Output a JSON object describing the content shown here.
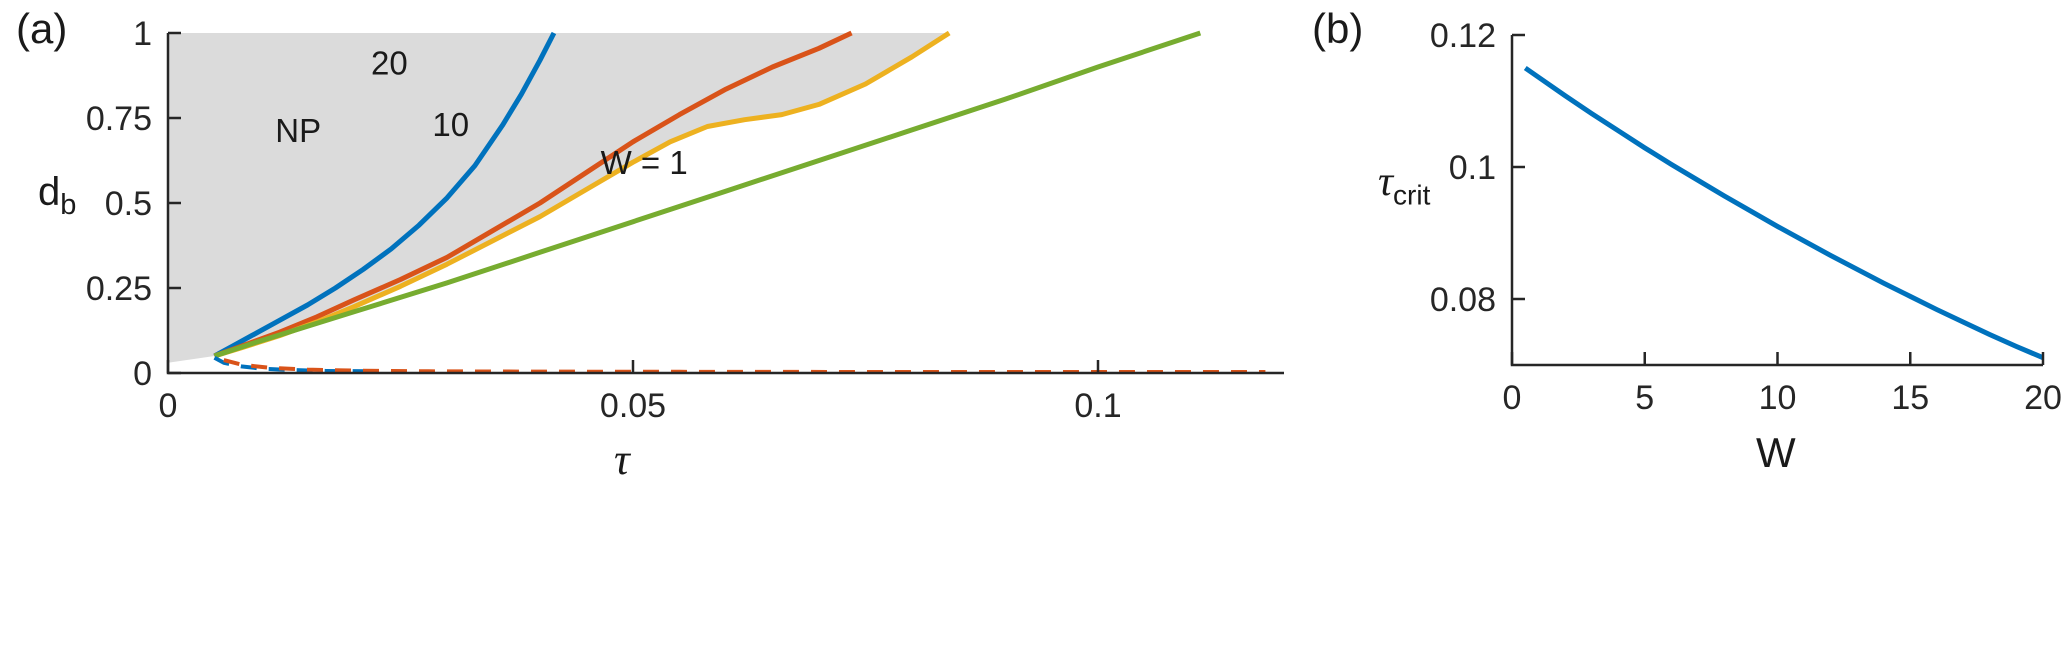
{
  "colors": {
    "axis": "#262626",
    "text": "#1a1a1a",
    "background": "#ffffff",
    "blue": "#0072BD",
    "orange": "#D95319",
    "yellow": "#EDB120",
    "green": "#77AC30",
    "shade": "#DBDBDB"
  },
  "chart_data": [
    {
      "id": "a",
      "type": "line",
      "panel_label": "(a)",
      "xlabel": {
        "text": "τ",
        "sub": ""
      },
      "ylabel": {
        "text": "d",
        "sub": "b"
      },
      "xlim": [
        0,
        0.12
      ],
      "ylim": [
        0,
        1
      ],
      "xticks": [
        0,
        0.05,
        0.1
      ],
      "xtick_labels": [
        "0",
        "0.05",
        "0.1"
      ],
      "yticks": [
        0,
        0.25,
        0.5,
        0.75,
        1
      ],
      "ytick_labels": [
        "0",
        "0.25",
        "0.5",
        "0.75",
        "1"
      ],
      "grid": false,
      "legend": "none (curves labeled by in-plot annotations)",
      "shaded_region": {
        "color": "#DBDBDB",
        "note": "gray region bounded on the right by the W=10 boundary curve",
        "x": [
          0,
          0,
          0.005,
          0.008,
          0.012,
          0.016,
          0.02,
          0.025,
          0.03,
          0.035,
          0.04,
          0.045,
          0.05,
          0.054,
          0.058,
          0.062,
          0.066,
          0.07,
          0.075,
          0.08,
          0.084
        ],
        "y": [
          1,
          0.03,
          0.05,
          0.075,
          0.11,
          0.15,
          0.195,
          0.255,
          0.32,
          0.39,
          0.46,
          0.54,
          0.62,
          0.68,
          0.725,
          0.745,
          0.76,
          0.79,
          0.85,
          0.93,
          1.0
        ]
      },
      "series": [
        {
          "name": "NP",
          "color": "#0072BD",
          "style": "solid",
          "x": [
            0.005,
            0.007,
            0.009,
            0.012,
            0.015,
            0.018,
            0.021,
            0.024,
            0.027,
            0.03,
            0.033,
            0.036,
            0.038,
            0.04,
            0.0415
          ],
          "y": [
            0.05,
            0.08,
            0.11,
            0.155,
            0.2,
            0.25,
            0.305,
            0.365,
            0.435,
            0.515,
            0.61,
            0.73,
            0.82,
            0.92,
            1.0
          ]
        },
        {
          "name": "W=20",
          "color": "#D95319",
          "style": "solid",
          "x": [
            0.005,
            0.008,
            0.012,
            0.016,
            0.02,
            0.025,
            0.03,
            0.035,
            0.04,
            0.045,
            0.05,
            0.055,
            0.06,
            0.065,
            0.07,
            0.0735
          ],
          "y": [
            0.05,
            0.08,
            0.12,
            0.165,
            0.215,
            0.275,
            0.34,
            0.42,
            0.5,
            0.59,
            0.68,
            0.76,
            0.835,
            0.9,
            0.955,
            1.0
          ]
        },
        {
          "name": "W=10",
          "color": "#EDB120",
          "style": "solid",
          "x": [
            0.005,
            0.008,
            0.012,
            0.016,
            0.02,
            0.025,
            0.03,
            0.035,
            0.04,
            0.045,
            0.05,
            0.054,
            0.058,
            0.062,
            0.066,
            0.07,
            0.075,
            0.08,
            0.084
          ],
          "y": [
            0.05,
            0.075,
            0.11,
            0.15,
            0.195,
            0.255,
            0.32,
            0.39,
            0.46,
            0.54,
            0.62,
            0.68,
            0.725,
            0.745,
            0.76,
            0.79,
            0.85,
            0.93,
            1.0
          ]
        },
        {
          "name": "W=1",
          "color": "#77AC30",
          "style": "solid",
          "x": [
            0.005,
            0.01,
            0.02,
            0.03,
            0.04,
            0.05,
            0.06,
            0.07,
            0.08,
            0.09,
            0.1,
            0.111
          ],
          "y": [
            0.05,
            0.095,
            0.18,
            0.265,
            0.355,
            0.445,
            0.535,
            0.625,
            0.715,
            0.805,
            0.9,
            1.0
          ]
        },
        {
          "name": "lower-branch-NP",
          "color": "#0072BD",
          "style": "dashed",
          "x": [
            0.005,
            0.006,
            0.008,
            0.01,
            0.013,
            0.017,
            0.022
          ],
          "y": [
            0.045,
            0.03,
            0.019,
            0.013,
            0.009,
            0.006,
            0.005
          ]
        },
        {
          "name": "lower-branch",
          "color": "#D95319",
          "style": "dashed",
          "x": [
            0.006,
            0.008,
            0.011,
            0.015,
            0.02,
            0.028,
            0.04,
            0.055,
            0.075,
            0.095,
            0.118
          ],
          "y": [
            0.038,
            0.024,
            0.015,
            0.01,
            0.007,
            0.005,
            0.004,
            0.0035,
            0.003,
            0.003,
            0.003
          ]
        }
      ],
      "annotations": [
        {
          "text": "NP",
          "x": 0.014,
          "y": 0.712
        },
        {
          "text": "20",
          "x": 0.0238,
          "y": 0.911
        },
        {
          "text": "10",
          "x": 0.0304,
          "y": 0.73
        },
        {
          "text": "W = 1",
          "x": 0.0512,
          "y": 0.617
        }
      ]
    },
    {
      "id": "b",
      "type": "line",
      "panel_label": "(b)",
      "xlabel": {
        "text": "W",
        "sub": ""
      },
      "ylabel": {
        "text": "τ",
        "sub": "crit"
      },
      "xlim": [
        0,
        20
      ],
      "ylim": [
        0.07,
        0.12
      ],
      "xticks": [
        0,
        5,
        10,
        15,
        20
      ],
      "xtick_labels": [
        "0",
        "5",
        "10",
        "15",
        "20"
      ],
      "yticks": [
        0.08,
        0.1,
        0.12
      ],
      "ytick_labels": [
        "0.08",
        "0.1",
        "0.12"
      ],
      "grid": false,
      "legend": "none",
      "series": [
        {
          "name": "tau_crit_vs_W",
          "color": "#0072BD",
          "style": "solid",
          "x": [
            0.5,
            1,
            2,
            3,
            4,
            5,
            6,
            7,
            8,
            9,
            10,
            11,
            12,
            13,
            14,
            15,
            16,
            17,
            18,
            19,
            20
          ],
          "y": [
            0.115,
            0.1136,
            0.1108,
            0.1081,
            0.1055,
            0.1029,
            0.1004,
            0.098,
            0.0956,
            0.0933,
            0.091,
            0.0888,
            0.0866,
            0.0845,
            0.0824,
            0.0804,
            0.0784,
            0.0765,
            0.0746,
            0.0728,
            0.0711
          ]
        }
      ],
      "annotations": []
    }
  ]
}
